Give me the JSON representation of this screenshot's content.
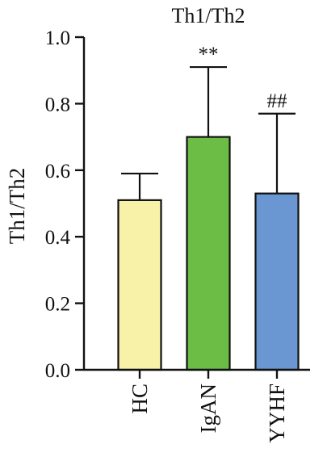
{
  "chart_data": {
    "type": "bar",
    "title": "Th1/Th2",
    "xlabel": "",
    "ylabel": "Th1/Th2",
    "ylim": [
      0,
      1.0
    ],
    "yticks": [
      "0.0",
      "0.2",
      "0.4",
      "0.6",
      "0.8",
      "1.0"
    ],
    "grid": false,
    "categories": [
      "HC",
      "IgAN",
      "YYHF"
    ],
    "values": [
      0.51,
      0.7,
      0.53
    ],
    "error_upper": [
      0.59,
      0.91,
      0.77
    ],
    "annotations": [
      "",
      "**",
      "##"
    ],
    "colors": [
      "#f7f2a8",
      "#6cbd45",
      "#6a97d1"
    ]
  }
}
